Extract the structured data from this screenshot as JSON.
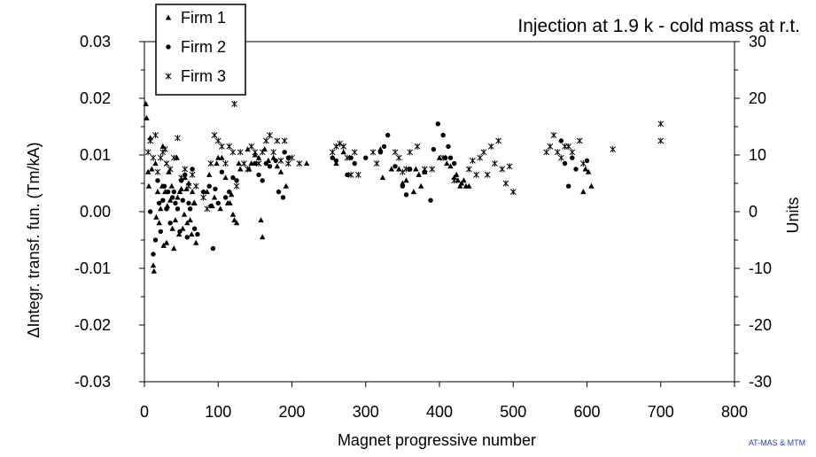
{
  "chart_data": {
    "type": "scatter",
    "title": "Injection at 1.9 k - cold mass at r.t.",
    "xlabel": "Magnet progressive number",
    "ylabel": "ΔIntegr. transf. fun. (Tm/kA)",
    "y2label": "Units",
    "credit": "AT-MAS & MTM",
    "xlim": [
      0,
      800
    ],
    "ylim": [
      -0.03,
      0.03
    ],
    "y2lim": [
      -30,
      30
    ],
    "x_ticks": [
      "0",
      "100",
      "200",
      "300",
      "400",
      "500",
      "600",
      "700",
      "800"
    ],
    "y_ticks": [
      "0.03",
      "0.02",
      "0.01",
      "0.00",
      "-0.01",
      "-0.02",
      "-0.03"
    ],
    "y2_ticks": [
      "30",
      "20",
      "10",
      "0",
      "-10",
      "-20",
      "-30"
    ],
    "grid": false,
    "legend_position": "top-left",
    "series": [
      {
        "name": "Firm 1",
        "marker": "triangle",
        "points": [
          [
            2,
            0.019
          ],
          [
            3,
            0.0165
          ],
          [
            5,
            0.007
          ],
          [
            6,
            0.0045
          ],
          [
            8,
            0.013
          ],
          [
            10,
            0.0075
          ],
          [
            12,
            -0.0095
          ],
          [
            13,
            -0.0105
          ],
          [
            15,
            0.0085
          ],
          [
            16,
            -0.001
          ],
          [
            18,
            0.0035
          ],
          [
            20,
            -0.002
          ],
          [
            22,
            0.0005
          ],
          [
            24,
            0.0045
          ],
          [
            25,
            0.0115
          ],
          [
            26,
            -0.006
          ],
          [
            28,
            0.0035
          ],
          [
            30,
            -0.0055
          ],
          [
            31,
            0.001
          ],
          [
            33,
            0.007
          ],
          [
            35,
            0.002
          ],
          [
            37,
            0.0045
          ],
          [
            38,
            -0.003
          ],
          [
            40,
            -0.0065
          ],
          [
            42,
            -0.0015
          ],
          [
            44,
            0.0095
          ],
          [
            45,
            0.0025
          ],
          [
            47,
            -0.004
          ],
          [
            48,
            0.0035
          ],
          [
            50,
            0.004
          ],
          [
            52,
            -0.003
          ],
          [
            54,
            -0.0005
          ],
          [
            55,
            0.006
          ],
          [
            57,
            0.004
          ],
          [
            58,
            -0.002
          ],
          [
            60,
            0.005
          ],
          [
            62,
            -0.0015
          ],
          [
            64,
            -0.004
          ],
          [
            65,
            0.0035
          ],
          [
            67,
            0.0015
          ],
          [
            68,
            0.0015
          ],
          [
            70,
            -0.0055
          ],
          [
            85,
            0.0035
          ],
          [
            88,
            0.0065
          ],
          [
            92,
            0.001
          ],
          [
            95,
            0.0025
          ],
          [
            98,
            0.0085
          ],
          [
            100,
            0.0095
          ],
          [
            103,
            0.0005
          ],
          [
            105,
            0.0095
          ],
          [
            110,
            0.006
          ],
          [
            113,
            0.0015
          ],
          [
            116,
            0.0015
          ],
          [
            118,
            0.003
          ],
          [
            120,
            -0.0005
          ],
          [
            122,
            -0.0015
          ],
          [
            125,
            -0.002
          ],
          [
            128,
            0.0085
          ],
          [
            130,
            0.0075
          ],
          [
            140,
            0.011
          ],
          [
            142,
            0.0075
          ],
          [
            145,
            0.0085
          ],
          [
            150,
            0.01
          ],
          [
            155,
            0.0095
          ],
          [
            158,
            -0.0015
          ],
          [
            160,
            -0.0045
          ],
          [
            163,
            0.011
          ],
          [
            168,
            0.009
          ],
          [
            175,
            0.0095
          ],
          [
            180,
            0.008
          ],
          [
            185,
            0.007
          ],
          [
            192,
            0.0045
          ],
          [
            220,
            0.0085
          ],
          [
            260,
            0.0085
          ],
          [
            270,
            0.0105
          ],
          [
            320,
            0.011
          ],
          [
            323,
            0.006
          ],
          [
            335,
            0.0075
          ],
          [
            345,
            0.0075
          ],
          [
            350,
            0.005
          ],
          [
            355,
            0.0055
          ],
          [
            365,
            0.0035
          ],
          [
            368,
            0.0075
          ],
          [
            372,
            0.0065
          ],
          [
            375,
            0.0045
          ],
          [
            380,
            0.007
          ],
          [
            400,
            0.0095
          ],
          [
            410,
            0.0085
          ],
          [
            415,
            0.008
          ],
          [
            420,
            0.006
          ],
          [
            423,
            0.0065
          ],
          [
            425,
            0.0055
          ],
          [
            428,
            0.0045
          ],
          [
            430,
            0.005
          ],
          [
            433,
            0.0055
          ],
          [
            436,
            0.0045
          ],
          [
            440,
            0.0045
          ],
          [
            595,
            0.0035
          ],
          [
            598,
            0.0075
          ],
          [
            602,
            0.007
          ],
          [
            606,
            0.0045
          ]
        ]
      },
      {
        "name": "Firm 2",
        "marker": "circle",
        "points": [
          [
            8,
            0.0
          ],
          [
            12,
            -0.0075
          ],
          [
            15,
            -0.005
          ],
          [
            18,
            0.0055
          ],
          [
            20,
            0.0015
          ],
          [
            22,
            -0.0035
          ],
          [
            25,
            0.002
          ],
          [
            27,
            0.0045
          ],
          [
            30,
            0.0005
          ],
          [
            32,
            0.0035
          ],
          [
            35,
            -0.002
          ],
          [
            38,
            0.0025
          ],
          [
            40,
            0.0035
          ],
          [
            42,
            0.0015
          ],
          [
            45,
            0.0005
          ],
          [
            48,
            -0.0035
          ],
          [
            50,
            0.0055
          ],
          [
            52,
            0.002
          ],
          [
            55,
            0.0065
          ],
          [
            58,
            -0.0045
          ],
          [
            60,
            0.0015
          ],
          [
            62,
            0.0005
          ],
          [
            65,
            0.0075
          ],
          [
            68,
            -0.003
          ],
          [
            72,
            -0.004
          ],
          [
            80,
            0.0035
          ],
          [
            88,
            0.0045
          ],
          [
            90,
            0.001
          ],
          [
            93,
            -0.0065
          ],
          [
            96,
            0.004
          ],
          [
            100,
            0.0015
          ],
          [
            105,
            0.007
          ],
          [
            110,
            0.0025
          ],
          [
            115,
            0.0035
          ],
          [
            120,
            0.006
          ],
          [
            125,
            0.0055
          ],
          [
            150,
            0.0085
          ],
          [
            155,
            0.0065
          ],
          [
            160,
            0.0055
          ],
          [
            165,
            0.0085
          ],
          [
            170,
            0.008
          ],
          [
            178,
            0.009
          ],
          [
            182,
            0.0035
          ],
          [
            188,
            0.0025
          ],
          [
            190,
            0.0105
          ],
          [
            195,
            0.0095
          ],
          [
            255,
            0.0095
          ],
          [
            260,
            0.009
          ],
          [
            275,
            0.0065
          ],
          [
            280,
            0.0095
          ],
          [
            285,
            0.0085
          ],
          [
            300,
            0.0095
          ],
          [
            320,
            0.0105
          ],
          [
            325,
            0.0115
          ],
          [
            330,
            0.0135
          ],
          [
            340,
            0.008
          ],
          [
            350,
            0.0045
          ],
          [
            355,
            0.003
          ],
          [
            360,
            0.0075
          ],
          [
            380,
            0.007
          ],
          [
            388,
            0.002
          ],
          [
            392,
            0.011
          ],
          [
            398,
            0.0155
          ],
          [
            405,
            0.0135
          ],
          [
            408,
            0.0095
          ],
          [
            412,
            0.0115
          ],
          [
            415,
            0.0095
          ],
          [
            420,
            0.0085
          ],
          [
            565,
            0.0125
          ],
          [
            570,
            0.0085
          ],
          [
            575,
            0.0045
          ],
          [
            580,
            0.0095
          ],
          [
            585,
            0.0075
          ],
          [
            600,
            0.009
          ]
        ]
      },
      {
        "name": "Firm 3",
        "marker": "asterisk",
        "points": [
          [
            5,
            0.0105
          ],
          [
            8,
            0.0125
          ],
          [
            12,
            0.0095
          ],
          [
            15,
            0.0135
          ],
          [
            18,
            0.007
          ],
          [
            22,
            0.0095
          ],
          [
            25,
            0.0105
          ],
          [
            28,
            0.011
          ],
          [
            30,
            0.0085
          ],
          [
            35,
            0.0075
          ],
          [
            40,
            0.0095
          ],
          [
            45,
            0.013
          ],
          [
            50,
            0.006
          ],
          [
            55,
            0.0075
          ],
          [
            60,
            0.0045
          ],
          [
            65,
            0.0065
          ],
          [
            70,
            0.0045
          ],
          [
            80,
            0.0025
          ],
          [
            85,
            0.0005
          ],
          [
            90,
            0.0085
          ],
          [
            95,
            0.0135
          ],
          [
            100,
            0.0125
          ],
          [
            105,
            0.0115
          ],
          [
            110,
            0.0085
          ],
          [
            115,
            0.0115
          ],
          [
            120,
            0.0105
          ],
          [
            122,
            0.019
          ],
          [
            125,
            0.0045
          ],
          [
            130,
            0.0105
          ],
          [
            135,
            0.0085
          ],
          [
            140,
            0.0075
          ],
          [
            145,
            0.0115
          ],
          [
            150,
            0.0105
          ],
          [
            155,
            0.0085
          ],
          [
            160,
            0.0105
          ],
          [
            165,
            0.0125
          ],
          [
            170,
            0.0135
          ],
          [
            175,
            0.0105
          ],
          [
            180,
            0.0125
          ],
          [
            185,
            0.009
          ],
          [
            190,
            0.0125
          ],
          [
            195,
            0.0085
          ],
          [
            200,
            0.0095
          ],
          [
            210,
            0.0085
          ],
          [
            255,
            0.0105
          ],
          [
            260,
            0.0115
          ],
          [
            265,
            0.012
          ],
          [
            270,
            0.0115
          ],
          [
            275,
            0.0095
          ],
          [
            280,
            0.0065
          ],
          [
            285,
            0.0105
          ],
          [
            290,
            0.0065
          ],
          [
            310,
            0.0105
          ],
          [
            315,
            0.0085
          ],
          [
            340,
            0.0105
          ],
          [
            345,
            0.0095
          ],
          [
            350,
            0.007
          ],
          [
            355,
            0.0075
          ],
          [
            360,
            0.0105
          ],
          [
            370,
            0.0115
          ],
          [
            380,
            0.0075
          ],
          [
            390,
            0.0075
          ],
          [
            405,
            0.0095
          ],
          [
            420,
            0.0055
          ],
          [
            440,
            0.0075
          ],
          [
            445,
            0.009
          ],
          [
            450,
            0.0065
          ],
          [
            455,
            0.0095
          ],
          [
            460,
            0.0105
          ],
          [
            465,
            0.0065
          ],
          [
            470,
            0.0115
          ],
          [
            475,
            0.0085
          ],
          [
            480,
            0.0125
          ],
          [
            485,
            0.0075
          ],
          [
            490,
            0.005
          ],
          [
            495,
            0.008
          ],
          [
            500,
            0.0035
          ],
          [
            545,
            0.0105
          ],
          [
            550,
            0.0115
          ],
          [
            555,
            0.0135
          ],
          [
            560,
            0.0105
          ],
          [
            565,
            0.0095
          ],
          [
            570,
            0.0115
          ],
          [
            575,
            0.0115
          ],
          [
            580,
            0.0105
          ],
          [
            590,
            0.0125
          ],
          [
            595,
            0.0085
          ],
          [
            635,
            0.011
          ],
          [
            700,
            0.0155
          ],
          [
            700,
            0.0125
          ]
        ]
      }
    ]
  }
}
